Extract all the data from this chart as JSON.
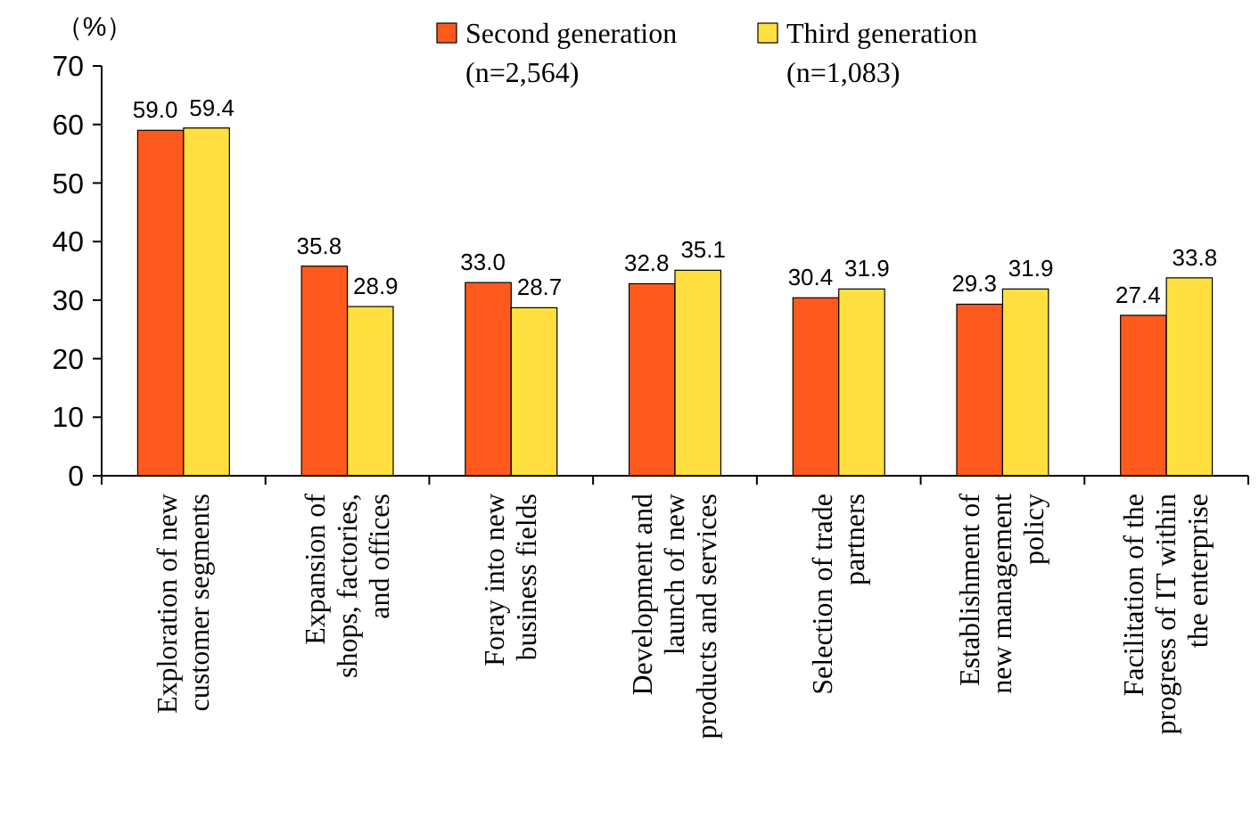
{
  "chart_data": {
    "type": "bar",
    "ylabel": "（%）",
    "categories": [
      "Exploration of new\ncustomer segments",
      "Expansion of\nshops, factories,\nand offices",
      "Foray into new\nbusiness fields",
      "Development and\nlaunch of new\nproducts and services",
      "Selection of trade\npartners",
      "Establishment of\nnew management\npolicy",
      "Facilitation of the\nprogress of IT within\nthe enterprise"
    ],
    "series": [
      {
        "name": "Second generation\n(n=2,564)",
        "color": "#ff5a1e",
        "values": [
          59.0,
          35.8,
          33.0,
          32.8,
          30.4,
          29.3,
          27.4
        ],
        "value_labels": [
          "59.0",
          "35.8",
          "33.0",
          "32.8",
          "30.4",
          "29.3",
          "27.4"
        ]
      },
      {
        "name": "Third generation\n(n=1,083)",
        "color": "#ffe040",
        "values": [
          59.4,
          28.9,
          28.7,
          35.1,
          31.9,
          31.9,
          33.8
        ],
        "value_labels": [
          "59.4",
          "28.9",
          "28.7",
          "35.1",
          "31.9",
          "31.9",
          "33.8"
        ]
      }
    ],
    "ylim": [
      0,
      70
    ],
    "yticks": [
      0,
      10,
      20,
      30,
      40,
      50,
      60,
      70
    ],
    "legend": "top",
    "grid": false
  }
}
